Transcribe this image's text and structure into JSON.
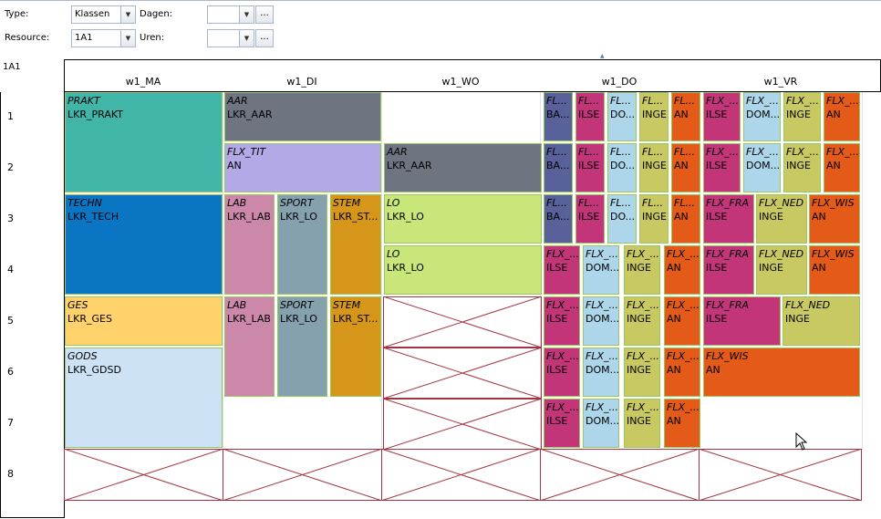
{
  "filters": {
    "type_label": "Type:",
    "type_value": "Klassen",
    "resource_label": "Resource:",
    "resource_value": "1A1",
    "dagen_label": "Dagen:",
    "dagen_value": "",
    "uren_label": "Uren:",
    "uren_value": "",
    "ellipsis": "..."
  },
  "resource_name": "1A1",
  "days": [
    "w1_MA",
    "w1_DI",
    "w1_WO",
    "w1_DO",
    "w1_VR"
  ],
  "hours": [
    "1",
    "2",
    "3",
    "4",
    "5",
    "6",
    "7",
    "8"
  ],
  "colors": {
    "teal": "#40b5a8",
    "slate": "#6e7581",
    "lavender": "#b3a9e6",
    "blue": "#0a75c2",
    "pink": "#cc88a8",
    "steel": "#85a1ad",
    "ochre": "#d6961a",
    "lime": "#c8e67a",
    "yellow": "#ffd26c",
    "lightblue": "#cde3f5",
    "navy": "#59619a",
    "magenta": "#c23579",
    "skyblue": "#add6ea",
    "olive": "#c9c963",
    "orange": "#e45a18",
    "grid_cross": "#a23340"
  },
  "lessons": [
    {
      "subject": "PRAKT",
      "teacher": "LKR_PRAKT",
      "color": "teal"
    },
    {
      "subject": "AAR",
      "teacher": "LKR_AAR",
      "color": "slate"
    },
    {
      "subject": "FLX_TIT",
      "teacher": "AN",
      "color": "lavender"
    },
    {
      "subject": "AAR",
      "teacher": "LKR_AAR",
      "color": "slate"
    },
    {
      "subject": "TECHN",
      "teacher": "LKR_TECH",
      "color": "blue"
    },
    {
      "subject": "LAB",
      "teacher": "LKR_LAB",
      "color": "pink"
    },
    {
      "subject": "SPORT",
      "teacher": "LKR_LO",
      "color": "steel"
    },
    {
      "subject": "STEM",
      "teacher": "LKR_ST...",
      "color": "ochre"
    },
    {
      "subject": "LO",
      "teacher": "LKR_LO",
      "color": "lime"
    },
    {
      "subject": "LO",
      "teacher": "LKR_LO",
      "color": "lime"
    },
    {
      "subject": "GES",
      "teacher": "LKR_GES",
      "color": "yellow"
    },
    {
      "subject": "LAB",
      "teacher": "LKR_LAB",
      "color": "pink"
    },
    {
      "subject": "SPORT",
      "teacher": "LKR_LO",
      "color": "steel"
    },
    {
      "subject": "STEM",
      "teacher": "LKR_ST...",
      "color": "ochre"
    },
    {
      "subject": "GODS",
      "teacher": "LKR_GDSD",
      "color": "lightblue"
    },
    {
      "subject": "FL...",
      "teacher": "BA...",
      "color": "navy"
    },
    {
      "subject": "FL...",
      "teacher": "ILSE",
      "color": "magenta"
    },
    {
      "subject": "FL...",
      "teacher": "DO...",
      "color": "skyblue"
    },
    {
      "subject": "FL...",
      "teacher": "INGE",
      "color": "olive"
    },
    {
      "subject": "FL...",
      "teacher": "AN",
      "color": "orange"
    },
    {
      "subject": "FL...",
      "teacher": "BA...",
      "color": "navy"
    },
    {
      "subject": "FL...",
      "teacher": "ILSE",
      "color": "magenta"
    },
    {
      "subject": "FL...",
      "teacher": "DO...",
      "color": "skyblue"
    },
    {
      "subject": "FL...",
      "teacher": "INGE",
      "color": "olive"
    },
    {
      "subject": "FL...",
      "teacher": "AN",
      "color": "orange"
    },
    {
      "subject": "FL...",
      "teacher": "BA...",
      "color": "navy"
    },
    {
      "subject": "FL...",
      "teacher": "ILSE",
      "color": "magenta"
    },
    {
      "subject": "FL...",
      "teacher": "DO...",
      "color": "skyblue"
    },
    {
      "subject": "FL...",
      "teacher": "INGE",
      "color": "olive"
    },
    {
      "subject": "FL...",
      "teacher": "AN",
      "color": "orange"
    },
    {
      "subject": "FLX_...",
      "teacher": "ILSE",
      "color": "magenta"
    },
    {
      "subject": "FLX_...",
      "teacher": "DOM...",
      "color": "skyblue"
    },
    {
      "subject": "FLX_...",
      "teacher": "INGE",
      "color": "olive"
    },
    {
      "subject": "FLX_...",
      "teacher": "AN",
      "color": "orange"
    },
    {
      "subject": "FLX_...",
      "teacher": "ILSE",
      "color": "magenta"
    },
    {
      "subject": "FLX_...",
      "teacher": "DOM...",
      "color": "skyblue"
    },
    {
      "subject": "FLX_...",
      "teacher": "INGE",
      "color": "olive"
    },
    {
      "subject": "FLX_...",
      "teacher": "AN",
      "color": "orange"
    },
    {
      "subject": "FLX_...",
      "teacher": "ILSE",
      "color": "magenta"
    },
    {
      "subject": "FLX_...",
      "teacher": "DOM...",
      "color": "skyblue"
    },
    {
      "subject": "FLX_...",
      "teacher": "INGE",
      "color": "olive"
    },
    {
      "subject": "FLX_...",
      "teacher": "AN",
      "color": "orange"
    },
    {
      "subject": "FLX_...",
      "teacher": "ILSE",
      "color": "magenta"
    },
    {
      "subject": "FLX_...",
      "teacher": "DOM...",
      "color": "skyblue"
    },
    {
      "subject": "FLX_...",
      "teacher": "INGE",
      "color": "olive"
    },
    {
      "subject": "FLX_...",
      "teacher": "AN",
      "color": "orange"
    },
    {
      "subject": "FLX_...",
      "teacher": "ILSE",
      "color": "magenta"
    },
    {
      "subject": "FLX_...",
      "teacher": "DOM...",
      "color": "skyblue"
    },
    {
      "subject": "FLX_...",
      "teacher": "INGE",
      "color": "olive"
    },
    {
      "subject": "FLX_...",
      "teacher": "AN",
      "color": "orange"
    },
    {
      "subject": "FLX_...",
      "teacher": "ILSE",
      "color": "magenta"
    },
    {
      "subject": "FLX_...",
      "teacher": "DOM...",
      "color": "skyblue"
    },
    {
      "subject": "FLX_...",
      "teacher": "INGE",
      "color": "olive"
    },
    {
      "subject": "FLX_...",
      "teacher": "AN",
      "color": "orange"
    },
    {
      "subject": "FLX_FRA",
      "teacher": "ILSE",
      "color": "magenta"
    },
    {
      "subject": "FLX_NED",
      "teacher": "INGE",
      "color": "olive"
    },
    {
      "subject": "FLX_WIS",
      "teacher": "AN",
      "color": "orange"
    },
    {
      "subject": "FLX_FRA",
      "teacher": "ILSE",
      "color": "magenta"
    },
    {
      "subject": "FLX_NED",
      "teacher": "INGE",
      "color": "olive"
    },
    {
      "subject": "FLX_WIS",
      "teacher": "AN",
      "color": "orange"
    },
    {
      "subject": "FLX_FRA",
      "teacher": "ILSE",
      "color": "magenta"
    },
    {
      "subject": "FLX_NED",
      "teacher": "INGE",
      "color": "olive"
    },
    {
      "subject": "FLX_WIS",
      "teacher": "AN",
      "color": "orange"
    }
  ]
}
